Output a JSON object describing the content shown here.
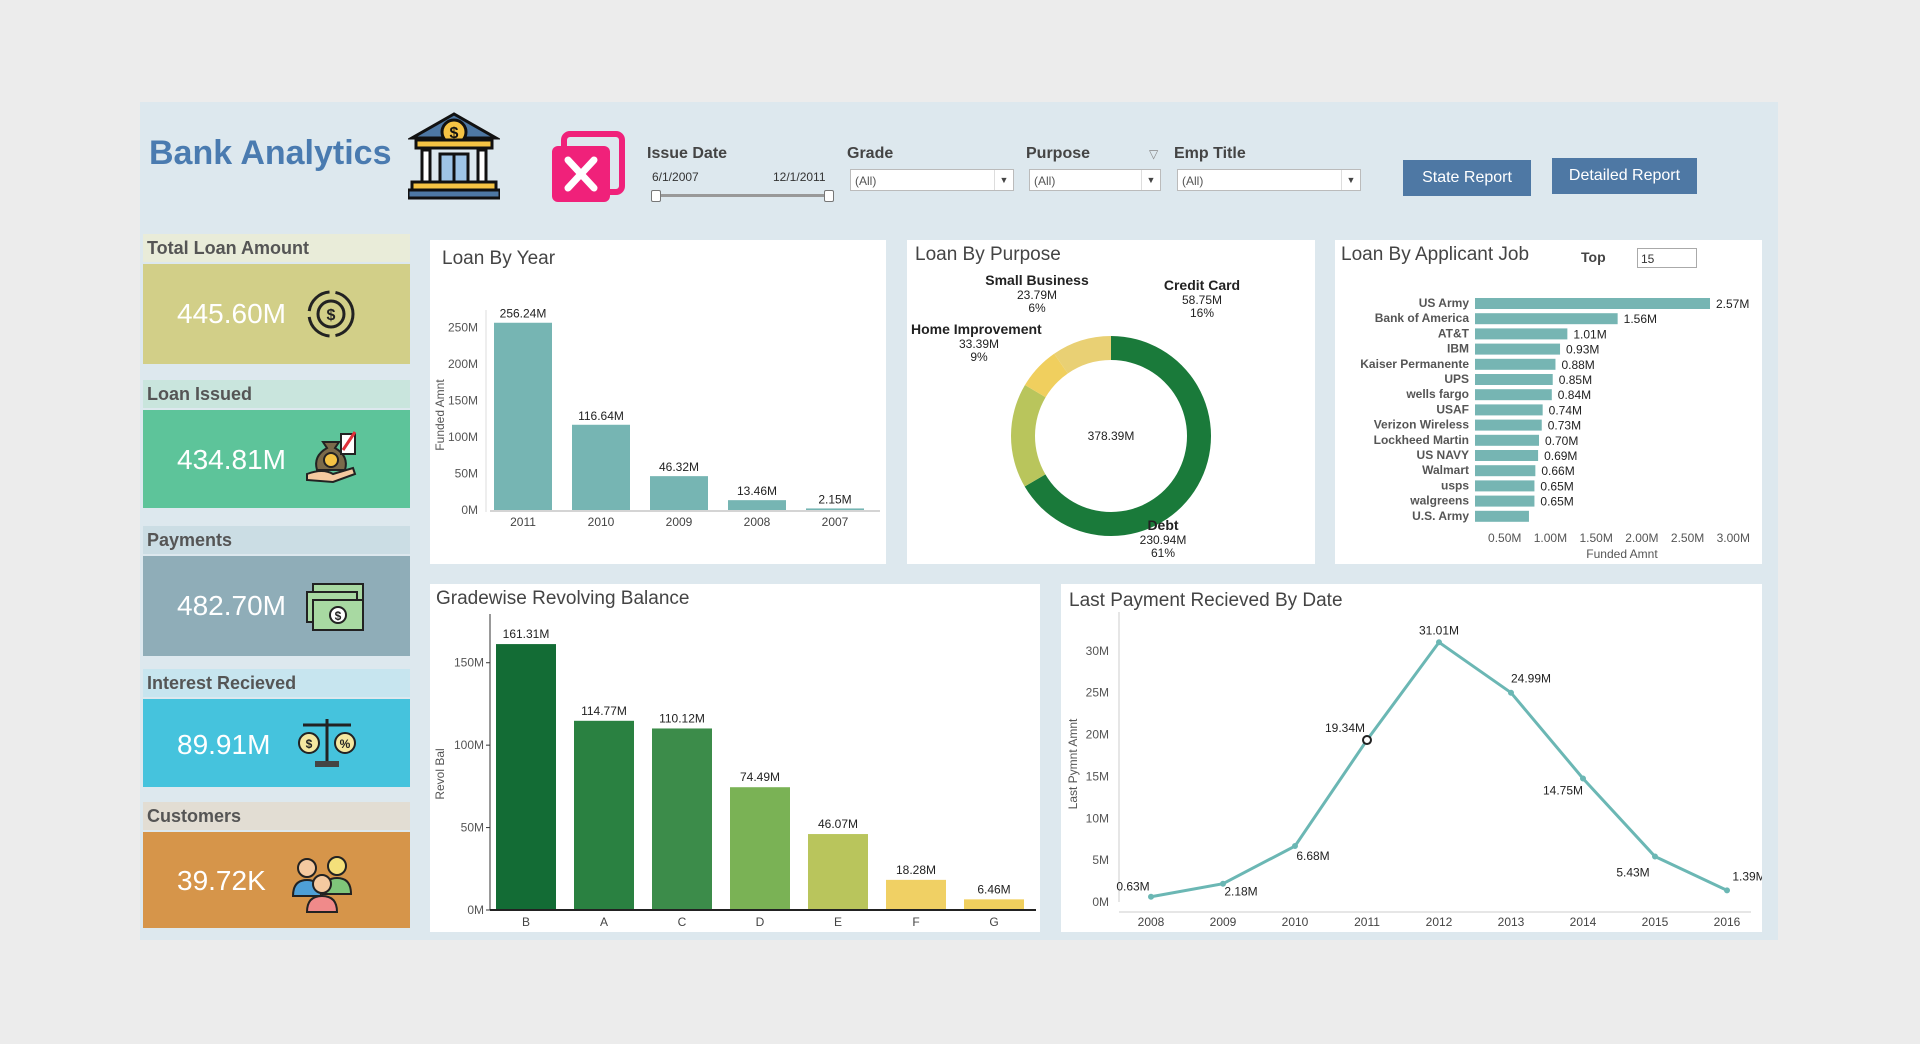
{
  "header": {
    "title": "Bank Analytics",
    "filters": {
      "issue_date": {
        "label": "Issue Date",
        "start": "6/1/2007",
        "end": "12/1/2011"
      },
      "grade": {
        "label": "Grade",
        "value": "(All)"
      },
      "purpose": {
        "label": "Purpose",
        "value": "(All)"
      },
      "emp_title": {
        "label": "Emp Title",
        "value": "(All)"
      }
    },
    "buttons": {
      "state_report": "State Report",
      "detailed_report": "Detailed Report"
    }
  },
  "kpis": [
    {
      "label": "Total Loan Amount",
      "value": "445.60M",
      "color": "#d2cf88",
      "label_bg": "#e9ecd9",
      "icon": "dollar-cycle-icon"
    },
    {
      "label": "Loan Issued",
      "value": "434.81M",
      "color": "#5dc49a",
      "label_bg": "#c9e5dd",
      "icon": "money-bag-hand-icon"
    },
    {
      "label": "Payments",
      "value": "482.70M",
      "color": "#8fadb8",
      "label_bg": "#cbdde4",
      "icon": "cash-stack-icon"
    },
    {
      "label": "Interest Recieved",
      "value": "89.91M",
      "color": "#45c3dd",
      "label_bg": "#c7e5ef",
      "icon": "scale-balance-icon"
    },
    {
      "label": "Customers",
      "value": "39.72K",
      "color": "#d6954a",
      "label_bg": "#e2ddd3",
      "icon": "people-group-icon"
    }
  ],
  "charts": {
    "loan_by_year": {
      "title": "Loan By Year",
      "ylabel": "Funded Amnt"
    },
    "loan_by_purpose": {
      "title": "Loan By Purpose"
    },
    "loan_by_job": {
      "title": "Loan By Applicant Job",
      "top_label": "Top",
      "top_value": "15",
      "xlabel": "Funded Amnt"
    },
    "revolving": {
      "title": "Gradewise Revolving Balance",
      "ylabel": "Revol Bal"
    },
    "last_payment": {
      "title": "Last Payment Recieved By Date",
      "ylabel": "Last Pymnt Amnt"
    }
  },
  "chart_data": [
    {
      "type": "bar",
      "categories": [
        "2011",
        "2010",
        "2009",
        "2008",
        "2007"
      ],
      "values": [
        256.24,
        116.64,
        46.32,
        13.46,
        2.15
      ],
      "labels": [
        "256.24M",
        "116.64M",
        "46.32M",
        "13.46M",
        "2.15M"
      ],
      "ylabel": "Funded Amnt",
      "yticks": [
        "0M",
        "50M",
        "100M",
        "150M",
        "200M",
        "250M"
      ],
      "ylim": [
        0,
        260
      ],
      "color": "#76b5b3"
    },
    {
      "type": "pie",
      "center_label": "378.39M",
      "slices": [
        {
          "name": "Debt",
          "value": 230.94,
          "value_label": "230.94M",
          "pct": "61%",
          "color": "#1a7a3a"
        },
        {
          "name": "Credit Card",
          "value": 58.75,
          "value_label": "58.75M",
          "pct": "16%",
          "color": "#b9c55c"
        },
        {
          "name": "Small Business",
          "value": 23.79,
          "value_label": "23.79M",
          "pct": "6%",
          "color": "#f0cf5e"
        },
        {
          "name": "Home Improvement",
          "value": 33.39,
          "value_label": "33.39M",
          "pct": "9%",
          "color": "#e9d074"
        }
      ]
    },
    {
      "type": "bar",
      "orientation": "horizontal",
      "categories": [
        "US Army",
        "Bank of America",
        "AT&T",
        "IBM",
        "Kaiser Permanente",
        "UPS",
        "wells fargo",
        "USAF",
        "Verizon Wireless",
        "Lockheed Martin",
        "US NAVY",
        "Walmart",
        "usps",
        "walgreens",
        "U.S. Army"
      ],
      "values": [
        2.57,
        1.56,
        1.01,
        0.93,
        0.88,
        0.85,
        0.84,
        0.74,
        0.73,
        0.7,
        0.69,
        0.66,
        0.65,
        0.65,
        0.59
      ],
      "labels": [
        "2.57M",
        "1.56M",
        "1.01M",
        "0.93M",
        "0.88M",
        "0.85M",
        "0.84M",
        "0.74M",
        "0.73M",
        "0.70M",
        "0.69M",
        "0.66M",
        "0.65M",
        "0.65M",
        ""
      ],
      "xticks": [
        "0.50M",
        "1.00M",
        "1.50M",
        "2.00M",
        "2.50M",
        "3.00M"
      ],
      "xlabel": "Funded Amnt",
      "color": "#76b5b3"
    },
    {
      "type": "bar",
      "categories": [
        "B",
        "A",
        "C",
        "D",
        "E",
        "F",
        "G"
      ],
      "values": [
        161.31,
        114.77,
        110.12,
        74.49,
        46.07,
        18.28,
        6.46
      ],
      "labels": [
        "161.31M",
        "114.77M",
        "110.12M",
        "74.49M",
        "46.07M",
        "18.28M",
        "6.46M"
      ],
      "colors": [
        "#136c35",
        "#2a8141",
        "#3c8c4a",
        "#7ab255",
        "#b9c55c",
        "#f0d064",
        "#f0cf5e"
      ],
      "yticks": [
        "0M",
        "50M",
        "100M",
        "150M"
      ],
      "ylim": [
        0,
        165
      ],
      "ylabel": "Revol Bal"
    },
    {
      "type": "line",
      "x": [
        "2008",
        "2009",
        "2010",
        "2011",
        "2012",
        "2013",
        "2014",
        "2015",
        "2016"
      ],
      "values": [
        0.63,
        2.18,
        6.68,
        19.34,
        31.01,
        24.99,
        14.75,
        5.43,
        1.39
      ],
      "labels": [
        "0.63M",
        "2.18M",
        "6.68M",
        "19.34M",
        "31.01M",
        "24.99M",
        "14.75M",
        "5.43M",
        "1.39M"
      ],
      "yticks": [
        "0M",
        "5M",
        "10M",
        "15M",
        "20M",
        "25M",
        "30M"
      ],
      "ylim": [
        0,
        32
      ],
      "ylabel": "Last Pymnt Amnt",
      "color": "#6bb7b4"
    }
  ]
}
